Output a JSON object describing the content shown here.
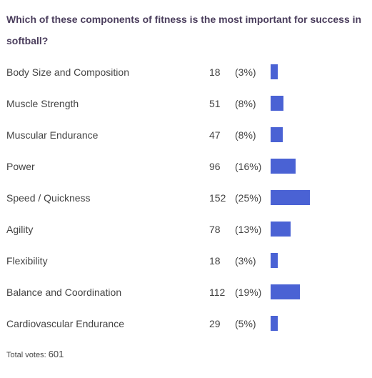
{
  "poll": {
    "question": "Which of these components of fitness is the most important for success in softball?",
    "total_label": "Total votes:",
    "total_votes": "601"
  },
  "colors": {
    "bar": "#4a62d4",
    "question_text": "#4a3d5c",
    "body_text": "#444444"
  },
  "chart_data": {
    "type": "bar",
    "orientation": "horizontal",
    "title": "Which of these components of fitness is the most important for success in softball?",
    "categories": [
      "Body Size and Composition",
      "Muscle Strength",
      "Muscular Endurance",
      "Power",
      "Speed / Quickness",
      "Agility",
      "Flexibility",
      "Balance and Coordination",
      "Cardiovascular Endurance"
    ],
    "values": [
      18,
      51,
      47,
      96,
      152,
      78,
      18,
      112,
      29
    ],
    "percent_labels": [
      "(3%)",
      "(8%)",
      "(8%)",
      "(16%)",
      "(25%)",
      "(13%)",
      "(3%)",
      "(19%)",
      "(5%)"
    ],
    "grid": false,
    "legend": "none"
  }
}
